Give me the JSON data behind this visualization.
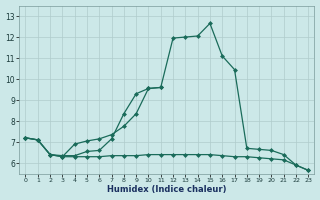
{
  "xlabel": "Humidex (Indice chaleur)",
  "bg_color": "#cce8e8",
  "grid_color": "#b0cccc",
  "line_color": "#1a6b5a",
  "x_values": [
    0,
    1,
    2,
    3,
    4,
    5,
    6,
    7,
    8,
    9,
    10,
    11,
    12,
    13,
    14,
    15,
    16,
    17,
    18,
    19,
    20,
    21,
    22,
    23
  ],
  "curve_max": [
    7.2,
    7.1,
    6.4,
    6.3,
    6.9,
    7.05,
    7.15,
    7.35,
    7.75,
    8.35,
    9.55,
    9.6,
    11.95,
    12.0,
    12.05,
    12.65,
    11.1,
    10.45,
    6.7,
    6.65,
    6.6,
    6.4,
    5.9,
    5.65
  ],
  "curve_mid": [
    7.2,
    7.1,
    6.4,
    6.35,
    6.35,
    6.55,
    6.6,
    7.15,
    8.35,
    9.3,
    9.55,
    9.6,
    null,
    null,
    null,
    null,
    null,
    null,
    null,
    null,
    null,
    null,
    null,
    null
  ],
  "curve_min": [
    7.2,
    7.1,
    6.4,
    6.3,
    6.3,
    6.3,
    6.3,
    6.35,
    6.35,
    6.35,
    6.4,
    6.4,
    6.4,
    6.4,
    6.4,
    6.4,
    6.35,
    6.3,
    6.3,
    6.25,
    6.2,
    6.15,
    5.9,
    5.65
  ],
  "ylim": [
    5.5,
    13.5
  ],
  "xlim": [
    -0.5,
    23.5
  ],
  "yticks": [
    6,
    7,
    8,
    9,
    10,
    11,
    12,
    13
  ],
  "xticks": [
    0,
    1,
    2,
    3,
    4,
    5,
    6,
    7,
    8,
    9,
    10,
    11,
    12,
    13,
    14,
    15,
    16,
    17,
    18,
    19,
    20,
    21,
    22,
    23
  ]
}
